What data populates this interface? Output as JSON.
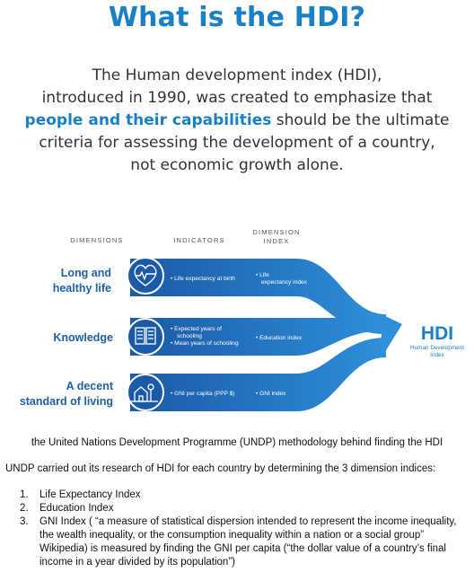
{
  "title": "What is the HDI?",
  "intro": {
    "line1": "The Human development index (HDI),",
    "line2": "introduced in 1990, was created to emphasize that",
    "highlight": "people and their capabilities",
    "line3_rest": " should be the ultimate",
    "line4": "criteria for assessing the development of a country,",
    "line5": "not economic growth alone."
  },
  "diagram": {
    "headers": {
      "dimensions": "DIMENSIONS",
      "indicators": "INDICATORS",
      "dimension_index_1": "DIMENSION",
      "dimension_index_2": "INDEX"
    },
    "rows": [
      {
        "dimension_1": "Long and",
        "dimension_2": "healthy life",
        "icon": "heart-pulse-icon",
        "indicator_1": "Life expectancy at birth",
        "indicator_2": "",
        "index_1": "Life",
        "index_2": "expectancy index"
      },
      {
        "dimension_1": "Knowledge",
        "dimension_2": "",
        "icon": "book-icon",
        "indicator_1": "Expected years of",
        "indicator_1b": "schooling",
        "indicator_2": "Mean years of schooling",
        "index_1": "Education index",
        "index_2": ""
      },
      {
        "dimension_1": "A decent",
        "dimension_2": "standard of living",
        "icon": "house-money-icon",
        "indicator_1": "GNI per capita (PPP $)",
        "indicator_2": "",
        "index_1": "GNI index",
        "index_2": ""
      }
    ],
    "output": {
      "label": "HDI",
      "sub_1": "Human Development",
      "sub_2": "Index"
    },
    "colors": {
      "accent": "#1a80c4",
      "band_dark": "#1b5aa6",
      "band_light": "#2e8fdb",
      "text_dark": "#1f5fa8"
    }
  },
  "caption": "the United Nations Development Programme (UNDP) methodology behind finding the HDI",
  "description": "UNDP carried out its research of HDI for each country by determining the 3 dimension indices:",
  "list": [
    {
      "num": "1.",
      "text": "Life Expectancy Index"
    },
    {
      "num": "2.",
      "text": "Education Index"
    },
    {
      "num": "3.",
      "text": "GNI Index ( “a measure of statistical dispersion intended to represent the income inequality, the wealth inequality, or the consumption inequality within a nation or a social group” Wikipedia) is measured by finding the GNI per capita (“the dollar value of a country’s final income in a year divided by its population”)"
    }
  ]
}
